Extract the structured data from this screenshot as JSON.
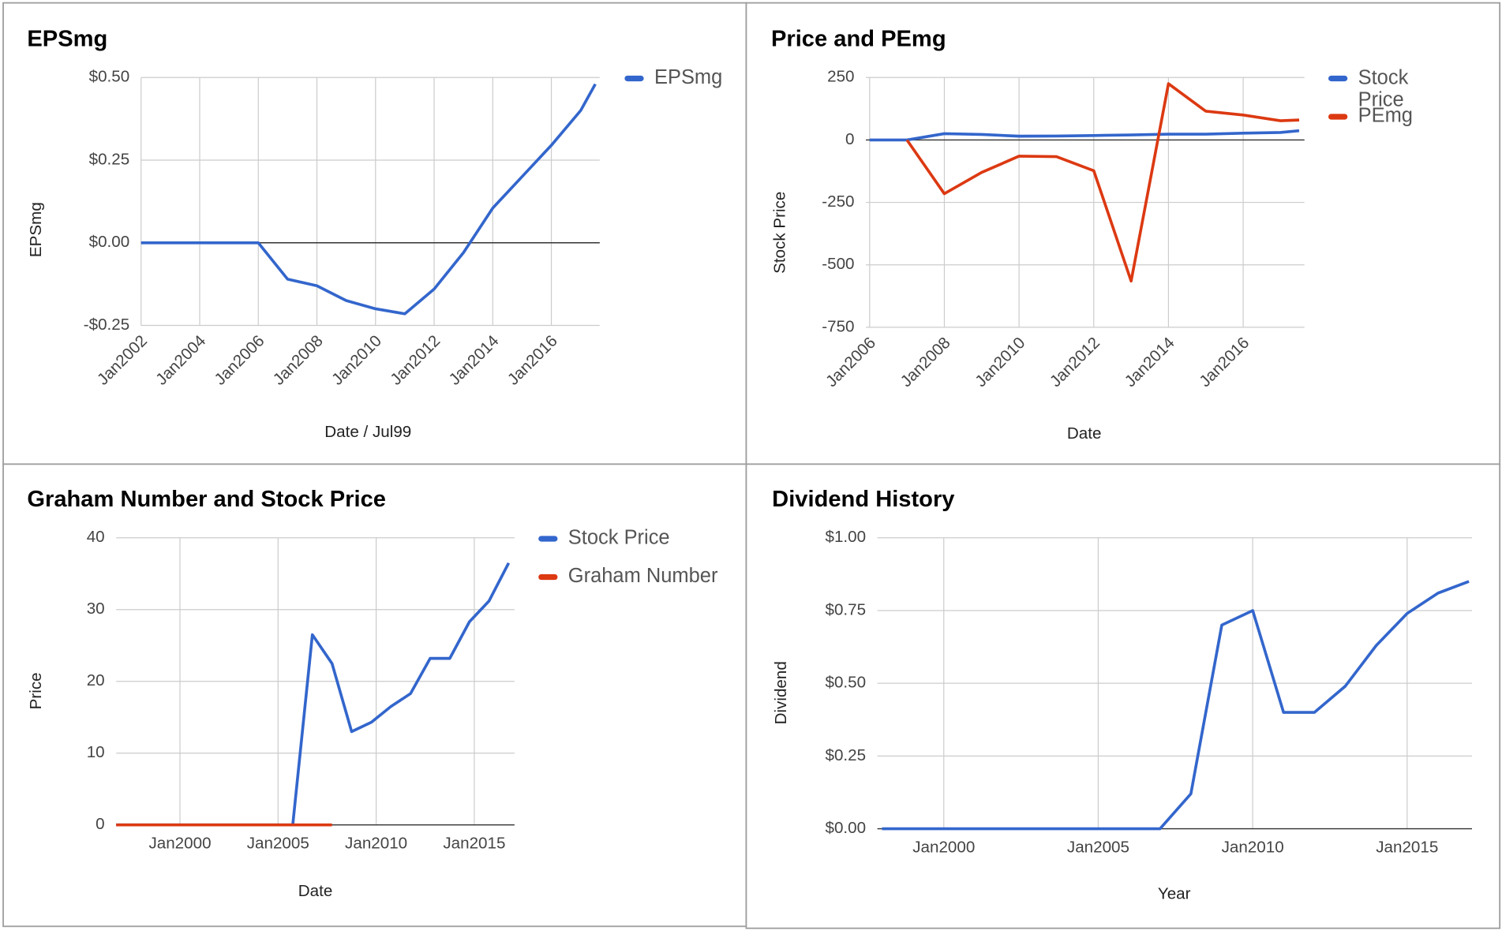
{
  "chart_data": [
    {
      "type": "line",
      "title": "EPSmg",
      "x_label": "Date / Jul99",
      "y_label": "EPSmg",
      "x": [
        2002,
        2003,
        2004,
        2005,
        2006,
        2007,
        2008,
        2009,
        2010,
        2011,
        2012,
        2013,
        2014,
        2015,
        2016,
        2017,
        2017.5
      ],
      "series": [
        {
          "name": "EPSmg",
          "color": "#3366cc",
          "values": [
            0,
            0,
            0,
            0,
            0,
            -0.11,
            -0.13,
            -0.175,
            -0.2,
            -0.215,
            -0.14,
            -0.03,
            0.105,
            0.2,
            0.295,
            0.4,
            0.48
          ]
        }
      ],
      "xlim": [
        2002,
        2017.65
      ],
      "ylim": [
        -0.25,
        0.5
      ],
      "xticks": [
        {
          "value": 2002,
          "label": "Jan2002"
        },
        {
          "value": 2004,
          "label": "Jan2004"
        },
        {
          "value": 2006,
          "label": "Jan2006"
        },
        {
          "value": 2008,
          "label": "Jan2008"
        },
        {
          "value": 2010,
          "label": "Jan2010"
        },
        {
          "value": 2012,
          "label": "Jan2012"
        },
        {
          "value": 2014,
          "label": "Jan2014"
        },
        {
          "value": 2016,
          "label": "Jan2016"
        }
      ],
      "yticks": [
        {
          "value": -0.25,
          "label": "-$0.25"
        },
        {
          "value": 0,
          "label": "$0.00"
        },
        {
          "value": 0.25,
          "label": "$0.25"
        },
        {
          "value": 0.5,
          "label": "$0.50"
        }
      ],
      "grid": true,
      "legend": "right"
    },
    {
      "type": "line",
      "title": "Price and PEmg",
      "x_label": "Date",
      "y_label": "Stock Price",
      "x": [
        2006,
        2007,
        2008,
        2009,
        2010,
        2011,
        2012,
        2013,
        2014,
        2015,
        2016,
        2017,
        2017.5
      ],
      "series": [
        {
          "name": "Stock Price",
          "color": "#3366cc",
          "values": [
            0,
            0,
            25,
            22,
            15,
            16,
            18,
            20,
            23,
            23,
            27,
            30,
            37
          ]
        },
        {
          "name": "PEmg",
          "color": "#dc3912",
          "values": [
            null,
            0,
            -215,
            -130,
            -65,
            -67,
            -123,
            -565,
            225,
            115,
            100,
            77,
            80
          ]
        }
      ],
      "xlim": [
        2005.9,
        2017.64
      ],
      "ylim": [
        -750,
        250
      ],
      "xticks": [
        {
          "value": 2006,
          "label": "Jan2006"
        },
        {
          "value": 2008,
          "label": "Jan2008"
        },
        {
          "value": 2010,
          "label": "Jan2010"
        },
        {
          "value": 2012,
          "label": "Jan2012"
        },
        {
          "value": 2014,
          "label": "Jan2014"
        },
        {
          "value": 2016,
          "label": "Jan2016"
        }
      ],
      "yticks": [
        -750,
        -500,
        -250,
        0,
        250
      ],
      "grid": true,
      "legend": "right"
    },
    {
      "type": "line",
      "title": "Graham Number and Stock Price",
      "x_label": "Date",
      "y_label": "Price",
      "x": [
        1996.75,
        1997.75,
        1998.75,
        1999.75,
        2000.75,
        2001.75,
        2002.75,
        2003.75,
        2004.75,
        2005.75,
        2006.75,
        2007.75,
        2008.75,
        2009.75,
        2010.75,
        2011.75,
        2012.75,
        2013.75,
        2014.75,
        2015.75,
        2016.75
      ],
      "series": [
        {
          "name": "Stock Price",
          "color": "#3366cc",
          "values": [
            0,
            0,
            0,
            0,
            0,
            0,
            0,
            0,
            0,
            0,
            26.5,
            22.5,
            13,
            14.3,
            16.5,
            18.3,
            23.2,
            23.2,
            28.3,
            31.2,
            36.5
          ]
        },
        {
          "name": "Graham Number",
          "color": "#dc3912",
          "values": [
            0,
            0,
            0,
            0,
            0,
            0,
            0,
            0,
            0,
            0,
            0,
            0,
            null,
            null,
            null,
            null,
            null,
            null,
            null,
            null,
            null
          ]
        }
      ],
      "xlim": [
        1996.75,
        2017.05
      ],
      "ylim": [
        0,
        40
      ],
      "xticks": [
        {
          "value": 2000,
          "label": "Jan2000"
        },
        {
          "value": 2005,
          "label": "Jan2005"
        },
        {
          "value": 2010,
          "label": "Jan2010"
        },
        {
          "value": 2015,
          "label": "Jan2015"
        }
      ],
      "yticks": [
        0,
        10,
        20,
        30,
        40
      ],
      "grid": true,
      "legend": "right"
    },
    {
      "type": "line",
      "title": "Dividend History",
      "x_label": "Year",
      "y_label": "Dividend",
      "x": [
        1998,
        1999,
        2000,
        2001,
        2002,
        2003,
        2004,
        2005,
        2006,
        2007,
        2008,
        2009,
        2010,
        2011,
        2012,
        2013,
        2014,
        2015,
        2016,
        2017
      ],
      "series": [
        {
          "color": "#3366cc",
          "values": [
            0,
            0,
            0,
            0,
            0,
            0,
            0,
            0,
            0,
            0,
            0.12,
            0.7,
            0.75,
            0.4,
            0.4,
            0.49,
            0.63,
            0.74,
            0.81,
            0.85
          ]
        }
      ],
      "xlim": [
        1997.85,
        2017.1
      ],
      "ylim": [
        0,
        1
      ],
      "xticks": [
        {
          "value": 2000,
          "label": "Jan2000"
        },
        {
          "value": 2005,
          "label": "Jan2005"
        },
        {
          "value": 2010,
          "label": "Jan2010"
        },
        {
          "value": 2015,
          "label": "Jan2015"
        }
      ],
      "yticks": [
        {
          "value": 0,
          "label": "$0.00"
        },
        {
          "value": 0.25,
          "label": "$0.25"
        },
        {
          "value": 0.5,
          "label": "$0.50"
        },
        {
          "value": 0.75,
          "label": "$0.75"
        },
        {
          "value": 1,
          "label": "$1.00"
        }
      ],
      "grid": true
    }
  ]
}
